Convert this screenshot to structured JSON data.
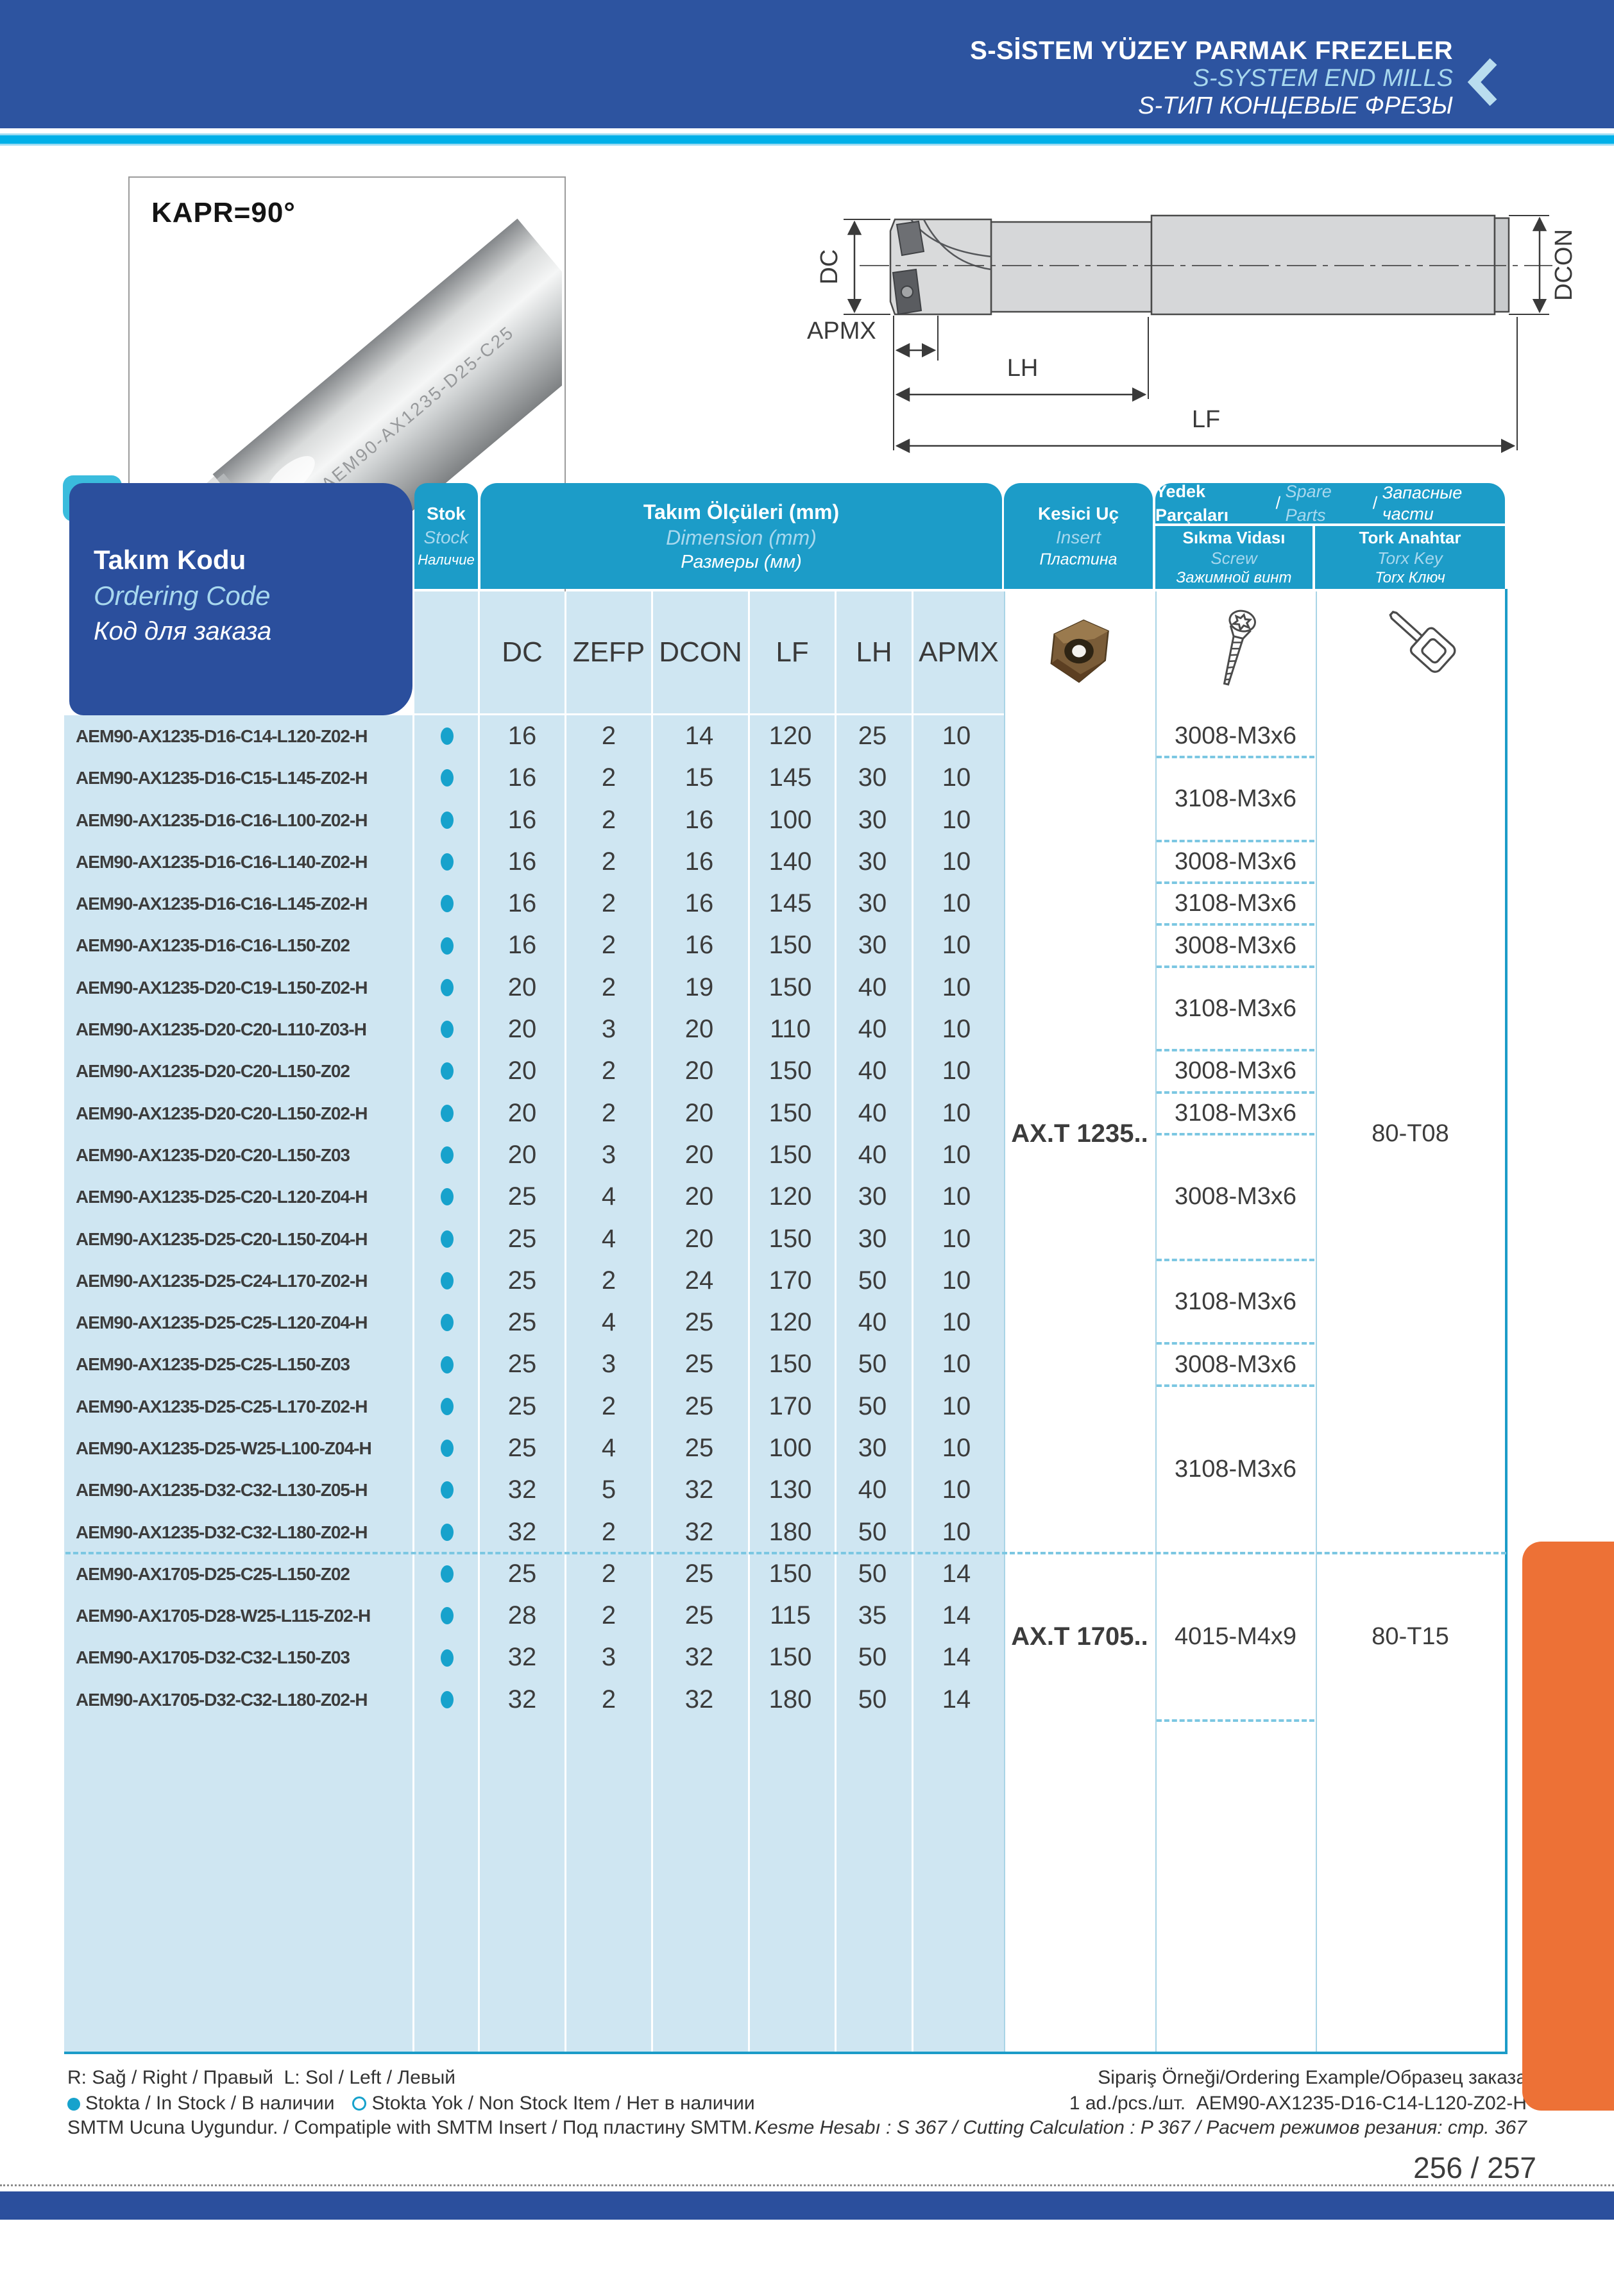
{
  "banner": {
    "title_tr": "S-SİSTEM YÜZEY PARMAK FREZELER",
    "title_en": "S-SYSTEM END MILLS",
    "title_ru": "S-ТИП КОНЦЕВЫЕ ФРЕЗЫ"
  },
  "photo": {
    "caption": "KAPR=90°",
    "shank_marking": "AEM90-AX1235-D25-C25"
  },
  "diagram": {
    "dc": "DC",
    "dcon": "DCON",
    "apmx": "APMX",
    "lh": "LH",
    "lf": "LF"
  },
  "table": {
    "code_header": {
      "tr": "Takım Kodu",
      "en": "Ordering Code",
      "ru": "Код для заказа"
    },
    "stock_header": {
      "tr": "Stok",
      "en": "Stock",
      "ru": "Наличие"
    },
    "dim_header": {
      "tr": "Takım Ölçüleri (mm)",
      "en": "Dimension (mm)",
      "ru": "Размеры (мм)"
    },
    "insert_header": {
      "tr": "Kesici Uç",
      "en": "Insert",
      "ru": "Пластина"
    },
    "spare_header": {
      "tr": "Yedek Parçaları",
      "en": "Spare Parts",
      "ru": "Запасные части"
    },
    "screw_header": {
      "tr": "Sıkma Vidası",
      "en": "Screw",
      "ru": "Зажимной винт"
    },
    "torx_header": {
      "tr": "Tork Anahtar",
      "en": "Torx Key",
      "ru": "Torx Ключ"
    },
    "dim_columns": [
      "DC",
      "ZEFP",
      "DCON",
      "LF",
      "LH",
      "APMX"
    ],
    "rows": [
      {
        "code": "AEM90-AX1235-D16-C14-L120-Z02-H",
        "stock": true,
        "dc": 16,
        "zefp": 2,
        "dcon": 14,
        "lf": 120,
        "lh": 25,
        "apmx": 10
      },
      {
        "code": "AEM90-AX1235-D16-C15-L145-Z02-H",
        "stock": true,
        "dc": 16,
        "zefp": 2,
        "dcon": 15,
        "lf": 145,
        "lh": 30,
        "apmx": 10
      },
      {
        "code": "AEM90-AX1235-D16-C16-L100-Z02-H",
        "stock": true,
        "dc": 16,
        "zefp": 2,
        "dcon": 16,
        "lf": 100,
        "lh": 30,
        "apmx": 10
      },
      {
        "code": "AEM90-AX1235-D16-C16-L140-Z02-H",
        "stock": true,
        "dc": 16,
        "zefp": 2,
        "dcon": 16,
        "lf": 140,
        "lh": 30,
        "apmx": 10
      },
      {
        "code": "AEM90-AX1235-D16-C16-L145-Z02-H",
        "stock": true,
        "dc": 16,
        "zefp": 2,
        "dcon": 16,
        "lf": 145,
        "lh": 30,
        "apmx": 10
      },
      {
        "code": "AEM90-AX1235-D16-C16-L150-Z02",
        "stock": true,
        "dc": 16,
        "zefp": 2,
        "dcon": 16,
        "lf": 150,
        "lh": 30,
        "apmx": 10
      },
      {
        "code": "AEM90-AX1235-D20-C19-L150-Z02-H",
        "stock": true,
        "dc": 20,
        "zefp": 2,
        "dcon": 19,
        "lf": 150,
        "lh": 40,
        "apmx": 10
      },
      {
        "code": "AEM90-AX1235-D20-C20-L110-Z03-H",
        "stock": true,
        "dc": 20,
        "zefp": 3,
        "dcon": 20,
        "lf": 110,
        "lh": 40,
        "apmx": 10
      },
      {
        "code": "AEM90-AX1235-D20-C20-L150-Z02",
        "stock": true,
        "dc": 20,
        "zefp": 2,
        "dcon": 20,
        "lf": 150,
        "lh": 40,
        "apmx": 10
      },
      {
        "code": "AEM90-AX1235-D20-C20-L150-Z02-H",
        "stock": true,
        "dc": 20,
        "zefp": 2,
        "dcon": 20,
        "lf": 150,
        "lh": 40,
        "apmx": 10
      },
      {
        "code": "AEM90-AX1235-D20-C20-L150-Z03",
        "stock": true,
        "dc": 20,
        "zefp": 3,
        "dcon": 20,
        "lf": 150,
        "lh": 40,
        "apmx": 10
      },
      {
        "code": "AEM90-AX1235-D25-C20-L120-Z04-H",
        "stock": true,
        "dc": 25,
        "zefp": 4,
        "dcon": 20,
        "lf": 120,
        "lh": 30,
        "apmx": 10
      },
      {
        "code": "AEM90-AX1235-D25-C20-L150-Z04-H",
        "stock": true,
        "dc": 25,
        "zefp": 4,
        "dcon": 20,
        "lf": 150,
        "lh": 30,
        "apmx": 10
      },
      {
        "code": "AEM90-AX1235-D25-C24-L170-Z02-H",
        "stock": true,
        "dc": 25,
        "zefp": 2,
        "dcon": 24,
        "lf": 170,
        "lh": 50,
        "apmx": 10
      },
      {
        "code": "AEM90-AX1235-D25-C25-L120-Z04-H",
        "stock": true,
        "dc": 25,
        "zefp": 4,
        "dcon": 25,
        "lf": 120,
        "lh": 40,
        "apmx": 10
      },
      {
        "code": "AEM90-AX1235-D25-C25-L150-Z03",
        "stock": true,
        "dc": 25,
        "zefp": 3,
        "dcon": 25,
        "lf": 150,
        "lh": 50,
        "apmx": 10
      },
      {
        "code": "AEM90-AX1235-D25-C25-L170-Z02-H",
        "stock": true,
        "dc": 25,
        "zefp": 2,
        "dcon": 25,
        "lf": 170,
        "lh": 50,
        "apmx": 10
      },
      {
        "code": "AEM90-AX1235-D25-W25-L100-Z04-H",
        "stock": true,
        "dc": 25,
        "zefp": 4,
        "dcon": 25,
        "lf": 100,
        "lh": 30,
        "apmx": 10
      },
      {
        "code": "AEM90-AX1235-D32-C32-L130-Z05-H",
        "stock": true,
        "dc": 32,
        "zefp": 5,
        "dcon": 32,
        "lf": 130,
        "lh": 40,
        "apmx": 10
      },
      {
        "code": "AEM90-AX1235-D32-C32-L180-Z02-H",
        "stock": true,
        "dc": 32,
        "zefp": 2,
        "dcon": 32,
        "lf": 180,
        "lh": 50,
        "apmx": 10
      },
      {
        "code": "AEM90-AX1705-D25-C25-L150-Z02",
        "stock": true,
        "dc": 25,
        "zefp": 2,
        "dcon": 25,
        "lf": 150,
        "lh": 50,
        "apmx": 14
      },
      {
        "code": "AEM90-AX1705-D28-W25-L115-Z02-H",
        "stock": true,
        "dc": 28,
        "zefp": 2,
        "dcon": 25,
        "lf": 115,
        "lh": 35,
        "apmx": 14
      },
      {
        "code": "AEM90-AX1705-D32-C32-L150-Z03",
        "stock": true,
        "dc": 32,
        "zefp": 3,
        "dcon": 32,
        "lf": 150,
        "lh": 50,
        "apmx": 14
      },
      {
        "code": "AEM90-AX1705-D32-C32-L180-Z02-H",
        "stock": true,
        "dc": 32,
        "zefp": 2,
        "dcon": 32,
        "lf": 180,
        "lh": 50,
        "apmx": 14
      }
    ],
    "screw_groups": [
      {
        "start": 1,
        "end": 1,
        "label": "3008-M3x6"
      },
      {
        "start": 2,
        "end": 3,
        "label": "3108-M3x6"
      },
      {
        "start": 4,
        "end": 4,
        "label": "3008-M3x6"
      },
      {
        "start": 5,
        "end": 5,
        "label": "3108-M3x6"
      },
      {
        "start": 6,
        "end": 6,
        "label": "3008-M3x6"
      },
      {
        "start": 7,
        "end": 8,
        "label": "3108-M3x6"
      },
      {
        "start": 9,
        "end": 9,
        "label": "3008-M3x6"
      },
      {
        "start": 10,
        "end": 10,
        "label": "3108-M3x6"
      },
      {
        "start": 11,
        "end": 13,
        "label": "3008-M3x6"
      },
      {
        "start": 14,
        "end": 15,
        "label": "3108-M3x6"
      },
      {
        "start": 16,
        "end": 16,
        "label": "3008-M3x6"
      },
      {
        "start": 17,
        "end": 20,
        "label": "3108-M3x6"
      },
      {
        "start": 21,
        "end": 24,
        "label": "4015-M4x9"
      }
    ],
    "insert_groups": [
      {
        "start": 1,
        "end": 20,
        "label": "AX.T 1235.."
      },
      {
        "start": 21,
        "end": 24,
        "label": "AX.T 1705.."
      }
    ],
    "torx_groups": [
      {
        "start": 1,
        "end": 20,
        "label": "80-T08"
      },
      {
        "start": 21,
        "end": 24,
        "label": "80-T15"
      }
    ],
    "section_break_after_row": 20
  },
  "footer": {
    "rl_note": "R: Sağ / Right / Правый  L: Sol / Left / Левый",
    "stock_in": "Stokta / In Stock / В наличии",
    "stock_out": "Stokta Yok / Non Stock Item / Нет в наличии",
    "smtm_note": "SMTM Ucuna Uygundur. / Compatiple with SMTM Insert / Под пластину SMTM.",
    "example_title": "Sipariş Örneği/Ordering Example/Образец заказа",
    "example_line": "1 ad./pcs./шт.  AEM90-AX1235-D16-C14-L120-Z02-H",
    "calc_note": "Kesme Hesabı : S 367 / Cutting Calculation : P 367 / Расчет режимов резания: стр. 367",
    "page": "256 / 257"
  },
  "colors": {
    "accent_teal": "#1c9cc8",
    "dark_blue": "#2b4f9d",
    "banner_blue": "#2d54a0",
    "light_blue_cell": "#cfe6f2",
    "orange_tab": "#ed7136",
    "stock_dot": "#17a2cc"
  }
}
